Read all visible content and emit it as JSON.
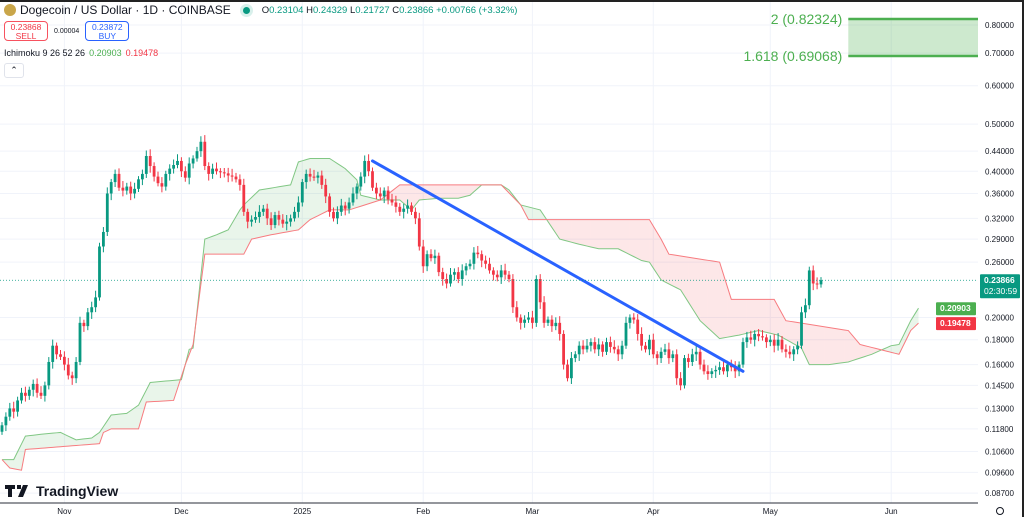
{
  "header": {
    "symbol_title": "Dogecoin / US Dollar · 1D · COINBASE",
    "ohlc": {
      "o_label": "O",
      "o": "0.23104",
      "h_label": "H",
      "h": "0.24329",
      "l_label": "L",
      "l": "0.21727",
      "c_label": "C",
      "c": "0.23866",
      "change": "+0.00766 (+3.32%)"
    },
    "sell": {
      "price": "0.23868",
      "label": "SELL"
    },
    "spread": "0.00004",
    "buy": {
      "price": "0.23872",
      "label": "BUY"
    },
    "indicator": {
      "name": "Ichimoku 9 26 52 26",
      "span_a": "0.20903",
      "span_b": "0.19478"
    },
    "collapse_icon": "chevron-up-icon"
  },
  "logo": {
    "text": "TradingView"
  },
  "price_axis": {
    "ticks": [
      "0.80000",
      "0.70000",
      "0.60000",
      "0.50000",
      "0.44000",
      "0.40000",
      "0.36000",
      "0.32000",
      "0.29000",
      "0.26000",
      "0.20000",
      "0.18000",
      "0.16000",
      "0.14500",
      "0.13000",
      "0.11800",
      "0.10600",
      "0.09600",
      "0.08700"
    ],
    "last_price": "0.23866",
    "countdown": "02:30:59",
    "span_a_label": "0.20903",
    "span_b_label": "0.19478",
    "settings_icon": "gear-icon"
  },
  "time_axis": {
    "ticks": [
      {
        "label": "Nov",
        "date": "2024-11-01"
      },
      {
        "label": "Dec",
        "date": "2024-12-01"
      },
      {
        "label": "2025",
        "date": "2025-01-01"
      },
      {
        "label": "Feb",
        "date": "2025-02-01"
      },
      {
        "label": "Mar",
        "date": "2025-03-01"
      },
      {
        "label": "Apr",
        "date": "2025-04-01"
      },
      {
        "label": "May",
        "date": "2025-05-01"
      },
      {
        "label": "Jun",
        "date": "2025-06-01"
      }
    ]
  },
  "colors": {
    "up": "#089981",
    "down": "#f23645",
    "span_a": "#81c784",
    "span_b": "#f77c80",
    "cloud_up": "rgba(76,175,80,0.12)",
    "cloud_down": "rgba(242,54,69,0.12)",
    "trendline": "#2962ff",
    "fib": "#4caf50",
    "fib_fill": "rgba(76,175,80,0.28)"
  },
  "chart_data": {
    "type": "candlestick",
    "scale": "log",
    "ylim": [
      0.083,
      0.86
    ],
    "grid": true,
    "first_date": "2024-10-16",
    "closes": [
      0.12,
      0.125,
      0.13,
      0.128,
      0.135,
      0.14,
      0.138,
      0.142,
      0.146,
      0.14,
      0.138,
      0.145,
      0.162,
      0.175,
      0.168,
      0.166,
      0.16,
      0.152,
      0.15,
      0.162,
      0.195,
      0.192,
      0.205,
      0.21,
      0.22,
      0.28,
      0.3,
      0.36,
      0.38,
      0.395,
      0.37,
      0.365,
      0.372,
      0.36,
      0.368,
      0.385,
      0.395,
      0.43,
      0.41,
      0.39,
      0.378,
      0.372,
      0.395,
      0.405,
      0.412,
      0.42,
      0.4,
      0.388,
      0.415,
      0.425,
      0.44,
      0.46,
      0.41,
      0.395,
      0.405,
      0.4,
      0.398,
      0.396,
      0.392,
      0.39,
      0.385,
      0.375,
      0.33,
      0.315,
      0.318,
      0.322,
      0.33,
      0.335,
      0.32,
      0.31,
      0.325,
      0.318,
      0.312,
      0.315,
      0.32,
      0.33,
      0.345,
      0.38,
      0.395,
      0.39,
      0.388,
      0.392,
      0.375,
      0.355,
      0.33,
      0.32,
      0.33,
      0.34,
      0.335,
      0.345,
      0.36,
      0.372,
      0.39,
      0.42,
      0.4,
      0.37,
      0.36,
      0.355,
      0.365,
      0.35,
      0.345,
      0.338,
      0.33,
      0.335,
      0.34,
      0.33,
      0.32,
      0.28,
      0.255,
      0.27,
      0.265,
      0.268,
      0.248,
      0.24,
      0.235,
      0.245,
      0.248,
      0.24,
      0.25,
      0.255,
      0.258,
      0.272,
      0.27,
      0.262,
      0.258,
      0.25,
      0.245,
      0.242,
      0.25,
      0.245,
      0.24,
      0.21,
      0.2,
      0.195,
      0.198,
      0.2,
      0.195,
      0.24,
      0.215,
      0.195,
      0.198,
      0.192,
      0.195,
      0.185,
      0.16,
      0.15,
      0.165,
      0.168,
      0.175,
      0.172,
      0.175,
      0.178,
      0.172,
      0.176,
      0.17,
      0.178,
      0.174,
      0.172,
      0.168,
      0.175,
      0.195,
      0.2,
      0.198,
      0.185,
      0.175,
      0.172,
      0.18,
      0.168,
      0.165,
      0.17,
      0.172,
      0.165,
      0.168,
      0.15,
      0.145,
      0.165,
      0.162,
      0.168,
      0.17,
      0.16,
      0.155,
      0.153,
      0.155,
      0.156,
      0.158,
      0.155,
      0.16,
      0.158,
      0.155,
      0.16,
      0.178,
      0.182,
      0.18,
      0.185,
      0.183,
      0.182,
      0.178,
      0.18,
      0.175,
      0.18,
      0.172,
      0.17,
      0.168,
      0.172,
      0.175,
      0.205,
      0.212,
      0.25,
      0.235,
      0.234,
      0.23866
    ],
    "ichimoku": {
      "span_a": [
        [
          "2024-10-16",
          0.102
        ],
        [
          "2024-10-19",
          0.102
        ],
        [
          "2024-10-22",
          0.114
        ],
        [
          "2024-10-26",
          0.115
        ],
        [
          "2024-10-31",
          0.116
        ],
        [
          "2024-11-04",
          0.112
        ],
        [
          "2024-11-08",
          0.113
        ],
        [
          "2024-11-10",
          0.116
        ],
        [
          "2024-11-13",
          0.126
        ],
        [
          "2024-11-17",
          0.127
        ],
        [
          "2024-11-20",
          0.132
        ],
        [
          "2024-11-23",
          0.147
        ],
        [
          "2024-12-01",
          0.149
        ],
        [
          "2024-12-03",
          0.172
        ],
        [
          "2024-12-04",
          0.173
        ],
        [
          "2024-12-07",
          0.29
        ],
        [
          "2024-12-10",
          0.296
        ],
        [
          "2024-12-13",
          0.303
        ],
        [
          "2024-12-16",
          0.333
        ],
        [
          "2024-12-17",
          0.341
        ],
        [
          "2024-12-21",
          0.366
        ],
        [
          "2024-12-29",
          0.375
        ],
        [
          "2024-12-31",
          0.418
        ],
        [
          "2025-01-03",
          0.425
        ],
        [
          "2025-01-08",
          0.425
        ],
        [
          "2025-01-12",
          0.405
        ],
        [
          "2025-01-15",
          0.384
        ],
        [
          "2025-01-16",
          0.357
        ],
        [
          "2025-01-21",
          0.349
        ],
        [
          "2025-01-26",
          0.349
        ],
        [
          "2025-01-29",
          0.333
        ],
        [
          "2025-01-31",
          0.349
        ],
        [
          "2025-02-05",
          0.352
        ],
        [
          "2025-02-10",
          0.352
        ],
        [
          "2025-02-13",
          0.357
        ],
        [
          "2025-02-16",
          0.375
        ],
        [
          "2025-02-21",
          0.375
        ],
        [
          "2025-02-23",
          0.366
        ],
        [
          "2025-02-26",
          0.341
        ],
        [
          "2025-03-03",
          0.333
        ],
        [
          "2025-03-08",
          0.29
        ],
        [
          "2025-03-13",
          0.283
        ],
        [
          "2025-03-18",
          0.277
        ],
        [
          "2025-03-23",
          0.277
        ],
        [
          "2025-03-29",
          0.262
        ],
        [
          "2025-03-31",
          0.26
        ],
        [
          "2025-04-03",
          0.239
        ],
        [
          "2025-04-08",
          0.228
        ],
        [
          "2025-04-13",
          0.197
        ],
        [
          "2025-04-18",
          0.181
        ],
        [
          "2025-04-23",
          0.184
        ],
        [
          "2025-04-28",
          0.188
        ],
        [
          "2025-05-03",
          0.184
        ],
        [
          "2025-05-09",
          0.173
        ],
        [
          "2025-05-11",
          0.16
        ],
        [
          "2025-05-16",
          0.16
        ],
        [
          "2025-05-21",
          0.162
        ],
        [
          "2025-05-27",
          0.168
        ],
        [
          "2025-06-01",
          0.175
        ],
        [
          "2025-06-03",
          0.176
        ],
        [
          "2025-06-06",
          0.197
        ],
        [
          "2025-06-08",
          0.20903
        ]
      ],
      "span_b": [
        [
          "2024-10-16",
          0.102
        ],
        [
          "2024-10-18",
          0.098
        ],
        [
          "2024-10-21",
          0.097
        ],
        [
          "2024-10-22",
          0.107
        ],
        [
          "2024-11-10",
          0.11
        ],
        [
          "2024-11-11",
          0.116
        ],
        [
          "2024-11-13",
          0.118
        ],
        [
          "2024-11-20",
          0.118
        ],
        [
          "2024-11-22",
          0.134
        ],
        [
          "2024-11-29",
          0.135
        ],
        [
          "2024-12-02",
          0.16
        ],
        [
          "2024-12-04",
          0.176
        ],
        [
          "2024-12-07",
          0.27
        ],
        [
          "2024-12-17",
          0.27
        ],
        [
          "2024-12-19",
          0.29
        ],
        [
          "2024-12-24",
          0.296
        ],
        [
          "2024-12-31",
          0.303
        ],
        [
          "2025-01-03",
          0.318
        ],
        [
          "2025-01-08",
          0.333
        ],
        [
          "2025-01-13",
          0.333
        ],
        [
          "2025-01-21",
          0.349
        ],
        [
          "2025-01-26",
          0.375
        ],
        [
          "2025-02-21",
          0.375
        ],
        [
          "2025-02-26",
          0.341
        ],
        [
          "2025-02-28",
          0.318
        ],
        [
          "2025-03-31",
          0.318
        ],
        [
          "2025-04-03",
          0.29
        ],
        [
          "2025-04-05",
          0.27
        ],
        [
          "2025-04-18",
          0.26
        ],
        [
          "2025-04-21",
          0.218
        ],
        [
          "2025-05-02",
          0.218
        ],
        [
          "2025-05-05",
          0.197
        ],
        [
          "2025-05-21",
          0.188
        ],
        [
          "2025-05-24",
          0.176
        ],
        [
          "2025-06-03",
          0.168
        ],
        [
          "2025-06-06",
          0.188
        ],
        [
          "2025-06-08",
          0.19478
        ]
      ]
    },
    "trendline": [
      [
        "2025-01-19",
        0.42
      ],
      [
        "2025-04-24",
        0.155
      ]
    ],
    "fib_extension": [
      {
        "level": "2",
        "price": 0.82324,
        "label": "2 (0.82324)"
      },
      {
        "level": "1.618",
        "price": 0.69068,
        "label": "1.618 (0.69068)"
      }
    ],
    "fib_start_date": "2025-05-21"
  }
}
